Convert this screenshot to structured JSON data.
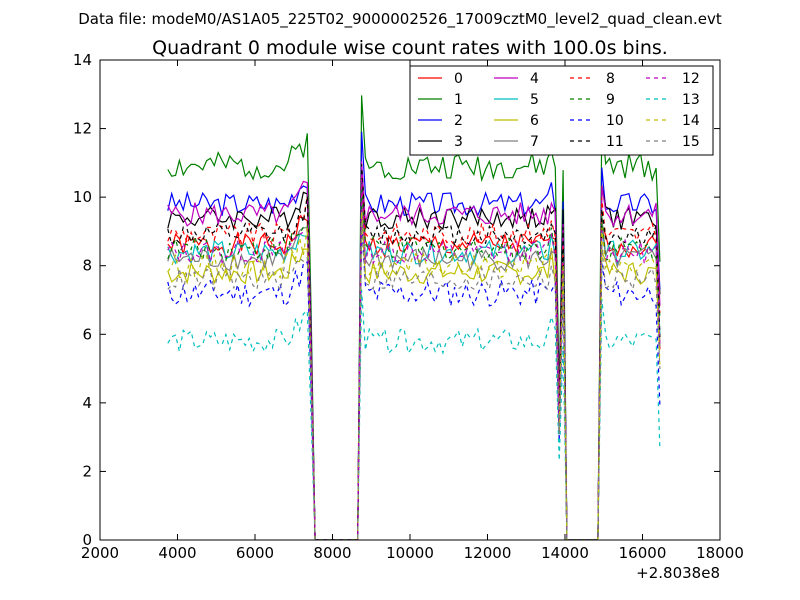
{
  "suptitle": "Data file: modeM0/AS1A05_225T02_9000002526_17009cztM0_level2_quad_clean.evt",
  "chart_data": {
    "type": "line",
    "title": "Quadrant 0 module wise count rates with 100.0s bins.",
    "xlabel": "",
    "ylabel": "",
    "x_offset_label": "+2.8038e8",
    "xlim": [
      2000,
      18000
    ],
    "ylim": [
      0,
      14
    ],
    "x_ticks": [
      2000,
      4000,
      6000,
      8000,
      10000,
      12000,
      14000,
      16000,
      18000
    ],
    "x_tick_labels": [
      "2000",
      "4000",
      "6000",
      "8000",
      "10000",
      "12000",
      "14000",
      "16000",
      "18000"
    ],
    "y_ticks": [
      0,
      2,
      4,
      6,
      8,
      10,
      12,
      14
    ],
    "y_tick_labels": [
      "0",
      "2",
      "4",
      "6",
      "8",
      "10",
      "12",
      "14"
    ],
    "legend_position": "top-right",
    "legend_columns": 4,
    "x_start": 3750,
    "x_step": 100,
    "x_end": 16450,
    "gaps": [
      [
        7500,
        8650
      ],
      [
        13950,
        14850
      ]
    ],
    "segments": [
      [
        3750,
        7350
      ],
      [
        8750,
        13750
      ],
      [
        14950,
        16450
      ]
    ],
    "series": [
      {
        "name": "0",
        "color": "#ff0000",
        "dashed": false,
        "level": 8.6,
        "noise": 0.35,
        "seed": 1
      },
      {
        "name": "1",
        "color": "#008000",
        "dashed": false,
        "level": 10.9,
        "noise": 0.4,
        "seed": 2
      },
      {
        "name": "2",
        "color": "#0000ff",
        "dashed": false,
        "level": 9.8,
        "noise": 0.35,
        "seed": 3
      },
      {
        "name": "3",
        "color": "#000000",
        "dashed": false,
        "level": 9.4,
        "noise": 0.35,
        "seed": 4
      },
      {
        "name": "4",
        "color": "#bf00bf",
        "dashed": false,
        "level": 9.5,
        "noise": 0.35,
        "seed": 5
      },
      {
        "name": "5",
        "color": "#00bfbf",
        "dashed": false,
        "level": 8.4,
        "noise": 0.35,
        "seed": 6
      },
      {
        "name": "6",
        "color": "#bfbf00",
        "dashed": false,
        "level": 7.8,
        "noise": 0.35,
        "seed": 7
      },
      {
        "name": "7",
        "color": "#808080",
        "dashed": false,
        "level": 8.2,
        "noise": 0.35,
        "seed": 8
      },
      {
        "name": "8",
        "color": "#ff0000",
        "dashed": true,
        "level": 8.9,
        "noise": 0.35,
        "seed": 9
      },
      {
        "name": "9",
        "color": "#008000",
        "dashed": true,
        "level": 8.5,
        "noise": 0.35,
        "seed": 10
      },
      {
        "name": "10",
        "color": "#0000ff",
        "dashed": true,
        "level": 7.2,
        "noise": 0.4,
        "seed": 11
      },
      {
        "name": "11",
        "color": "#000000",
        "dashed": true,
        "level": 8.9,
        "noise": 0.35,
        "seed": 12
      },
      {
        "name": "12",
        "color": "#bf00bf",
        "dashed": true,
        "level": 8.4,
        "noise": 0.35,
        "seed": 13
      },
      {
        "name": "13",
        "color": "#00bfbf",
        "dashed": true,
        "level": 5.8,
        "noise": 0.35,
        "seed": 14
      },
      {
        "name": "14",
        "color": "#bfbf00",
        "dashed": true,
        "level": 8.0,
        "noise": 0.35,
        "seed": 15
      },
      {
        "name": "15",
        "color": "#808080",
        "dashed": true,
        "level": 7.6,
        "noise": 0.35,
        "seed": 16
      }
    ]
  }
}
